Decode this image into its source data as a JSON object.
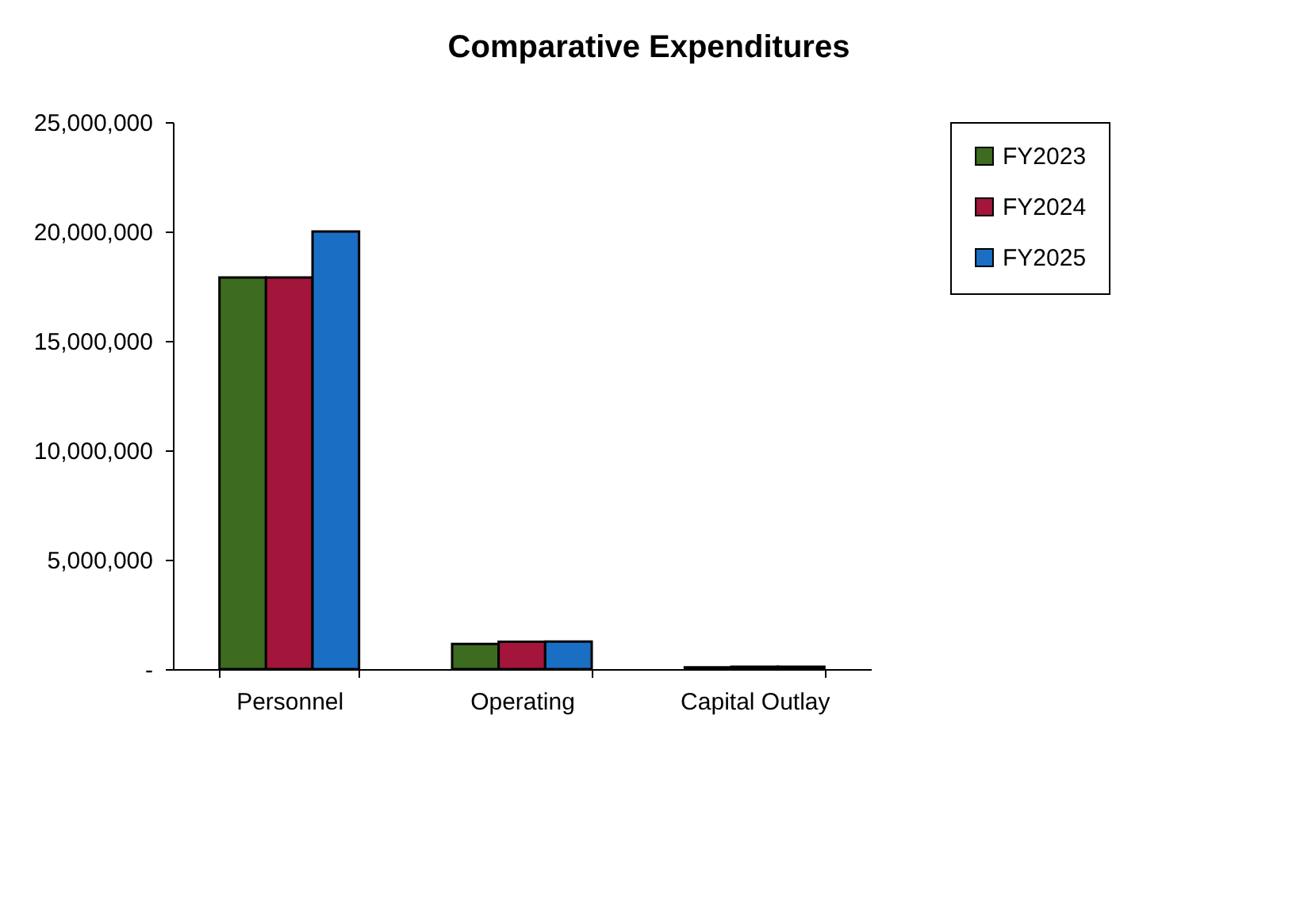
{
  "chart_data": {
    "type": "bar",
    "title": "Comparative Expenditures",
    "categories": [
      "Personnel",
      "Operating",
      "Capital Outlay"
    ],
    "series": [
      {
        "name": "FY2023",
        "color": "#3d6b1f",
        "values": [
          17900000,
          1150000,
          80000
        ]
      },
      {
        "name": "FY2024",
        "color": "#a3153a",
        "values": [
          17900000,
          1250000,
          110000
        ]
      },
      {
        "name": "FY2025",
        "color": "#1a6fc4",
        "values": [
          20000000,
          1260000,
          110000
        ]
      }
    ],
    "ylim": [
      0,
      25000000
    ],
    "yticks": [
      {
        "value": 0,
        "label": "-"
      },
      {
        "value": 5000000,
        "label": "5,000,000"
      },
      {
        "value": 10000000,
        "label": "10,000,000"
      },
      {
        "value": 15000000,
        "label": "15,000,000"
      },
      {
        "value": 20000000,
        "label": "20,000,000"
      },
      {
        "value": 25000000,
        "label": "25,000,000"
      }
    ],
    "grid": false,
    "legend": "right"
  }
}
